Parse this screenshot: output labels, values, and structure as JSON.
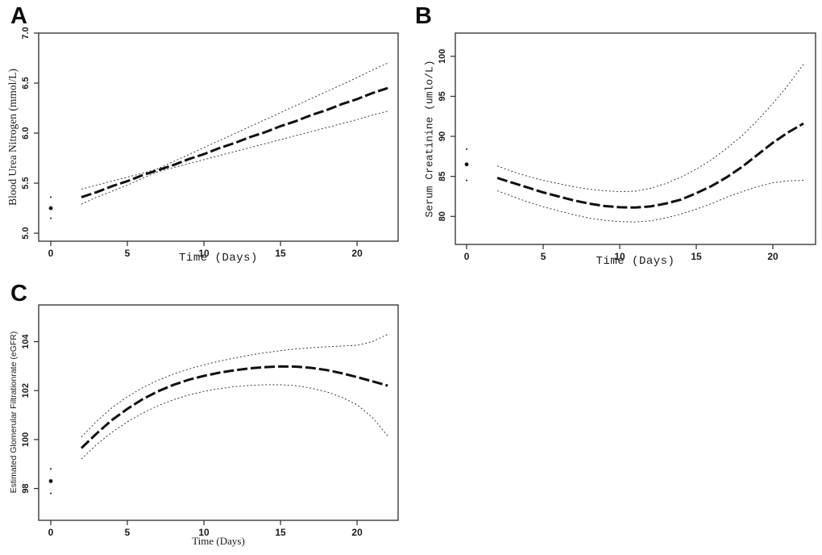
{
  "figure": {
    "background": "#ffffff",
    "ink": "#101010",
    "description_labels": {
      "panel_a": "A",
      "panel_b": "B",
      "panel_c": "C"
    }
  },
  "chart_data": [
    {
      "id": "A",
      "panel_label": "A",
      "type": "line",
      "title": "",
      "xlabel": "Time (Days)",
      "ylabel": "Blood Urea Nitrogen (mmol/L)",
      "xlim": [
        -0.79,
        22.68
      ],
      "ylim": [
        4.92,
        7.0
      ],
      "x_ticks": [
        0,
        5,
        10,
        15,
        20
      ],
      "x_tick_labels": [
        "0",
        "5",
        "10",
        "15",
        "20"
      ],
      "y_ticks": [
        5.0,
        5.5,
        6.0,
        6.5,
        7.0
      ],
      "y_tick_labels": [
        "5.0",
        "5.5",
        "6.0",
        "6.5",
        "7.0"
      ],
      "grid": false,
      "legend": "none",
      "x": [
        2,
        3,
        4,
        5,
        6,
        7,
        8,
        9,
        10,
        11,
        12,
        13,
        14,
        15,
        16,
        17,
        18,
        19,
        20,
        21,
        22
      ],
      "series": [
        {
          "name": "fitted-mean",
          "style": "mean",
          "values": [
            5.36,
            5.41,
            5.47,
            5.52,
            5.58,
            5.63,
            5.68,
            5.74,
            5.79,
            5.85,
            5.9,
            5.96,
            6.01,
            6.07,
            6.12,
            6.18,
            6.23,
            6.29,
            6.34,
            6.4,
            6.45
          ]
        },
        {
          "name": "upper-95-ci",
          "style": "ci",
          "values": [
            5.44,
            5.48,
            5.52,
            5.56,
            5.6,
            5.645,
            5.715,
            5.785,
            5.855,
            5.925,
            5.995,
            6.065,
            6.135,
            6.205,
            6.275,
            6.345,
            6.415,
            6.485,
            6.555,
            6.63,
            6.7
          ]
        },
        {
          "name": "lower-95-ci",
          "style": "ci",
          "values": [
            5.29,
            5.36,
            5.42,
            5.48,
            5.55,
            5.615,
            5.655,
            5.695,
            5.735,
            5.775,
            5.815,
            5.855,
            5.895,
            5.935,
            5.975,
            6.015,
            6.055,
            6.095,
            6.135,
            6.18,
            6.22
          ]
        }
      ],
      "baseline_points": [
        {
          "x": 0,
          "y": 5.25,
          "size": "large"
        },
        {
          "x": 0,
          "y": 5.36,
          "size": "small"
        },
        {
          "x": 0,
          "y": 5.15,
          "size": "small"
        }
      ]
    },
    {
      "id": "B",
      "panel_label": "B",
      "type": "line",
      "title": "",
      "xlabel": "Time (Days)",
      "ylabel": "Serum Creatinine (umlo/L)",
      "xlim": [
        -0.74,
        22.79
      ],
      "ylim": [
        76.5,
        102.9
      ],
      "x_ticks": [
        0,
        5,
        10,
        15,
        20
      ],
      "x_tick_labels": [
        "0",
        "5",
        "10",
        "15",
        "20"
      ],
      "y_ticks": [
        80,
        85,
        90,
        95,
        100
      ],
      "y_tick_labels": [
        "80",
        "85",
        "90",
        "95",
        "100"
      ],
      "grid": false,
      "legend": "none",
      "x": [
        2,
        3,
        4,
        5,
        6,
        7,
        8,
        9,
        10,
        11,
        12,
        13,
        14,
        15,
        16,
        17,
        18,
        19,
        20,
        21,
        22
      ],
      "series": [
        {
          "name": "fitted-mean",
          "style": "mean",
          "values": [
            84.8,
            84.2,
            83.6,
            83.0,
            82.5,
            82.0,
            81.6,
            81.3,
            81.15,
            81.1,
            81.25,
            81.6,
            82.1,
            82.9,
            83.8,
            84.9,
            86.2,
            87.7,
            89.2,
            90.5,
            91.6
          ]
        },
        {
          "name": "upper-95-ci",
          "style": "ci",
          "values": [
            86.3,
            85.6,
            85.0,
            84.5,
            84.1,
            83.7,
            83.4,
            83.2,
            83.1,
            83.15,
            83.5,
            84.1,
            84.9,
            85.9,
            87.1,
            88.5,
            90.1,
            92.0,
            94.1,
            96.4,
            99.0
          ]
        },
        {
          "name": "lower-95-ci",
          "style": "ci",
          "values": [
            83.2,
            82.5,
            81.8,
            81.2,
            80.7,
            80.2,
            79.8,
            79.5,
            79.35,
            79.3,
            79.45,
            79.8,
            80.3,
            80.9,
            81.6,
            82.4,
            83.1,
            83.7,
            84.2,
            84.45,
            84.5
          ]
        }
      ],
      "baseline_points": [
        {
          "x": 0,
          "y": 86.5,
          "size": "large"
        },
        {
          "x": 0,
          "y": 88.4,
          "size": "small"
        },
        {
          "x": 0,
          "y": 84.5,
          "size": "small"
        }
      ]
    },
    {
      "id": "C",
      "panel_label": "C",
      "type": "line",
      "title": "",
      "xlabel": "Time (Days)",
      "ylabel": "Estimated Glomerular Filtrationrate (eGFR)",
      "xlim": [
        -0.79,
        22.68
      ],
      "ylim": [
        96.7,
        105.5
      ],
      "x_ticks": [
        0,
        5,
        10,
        15,
        20
      ],
      "x_tick_labels": [
        "0",
        "5",
        "10",
        "15",
        "20"
      ],
      "y_ticks": [
        98,
        100,
        102,
        104
      ],
      "y_tick_labels": [
        "98",
        "100",
        "102",
        "104"
      ],
      "grid": false,
      "legend": "none",
      "x": [
        2,
        3,
        4,
        5,
        6,
        7,
        8,
        9,
        10,
        11,
        12,
        13,
        14,
        15,
        16,
        17,
        18,
        19,
        20,
        21,
        22
      ],
      "series": [
        {
          "name": "fitted-mean",
          "style": "mean",
          "values": [
            99.65,
            100.25,
            100.8,
            101.25,
            101.65,
            101.97,
            102.23,
            102.44,
            102.6,
            102.73,
            102.83,
            102.91,
            102.96,
            102.99,
            102.98,
            102.93,
            102.84,
            102.71,
            102.55,
            102.38,
            102.2
          ]
        },
        {
          "name": "upper-95-ci",
          "style": "ci",
          "values": [
            100.1,
            100.75,
            101.3,
            101.75,
            102.12,
            102.42,
            102.67,
            102.88,
            103.05,
            103.2,
            103.33,
            103.45,
            103.55,
            103.63,
            103.7,
            103.75,
            103.79,
            103.82,
            103.85,
            104.0,
            104.3
          ]
        },
        {
          "name": "lower-95-ci",
          "style": "ci",
          "values": [
            99.2,
            99.8,
            100.3,
            100.72,
            101.08,
            101.38,
            101.62,
            101.82,
            101.97,
            102.08,
            102.16,
            102.21,
            102.24,
            102.24,
            102.2,
            102.1,
            101.95,
            101.73,
            101.42,
            100.9,
            100.15
          ]
        }
      ],
      "baseline_points": [
        {
          "x": 0,
          "y": 98.3,
          "size": "large"
        },
        {
          "x": 0,
          "y": 98.8,
          "size": "small"
        },
        {
          "x": 0,
          "y": 97.8,
          "size": "small"
        }
      ]
    }
  ]
}
